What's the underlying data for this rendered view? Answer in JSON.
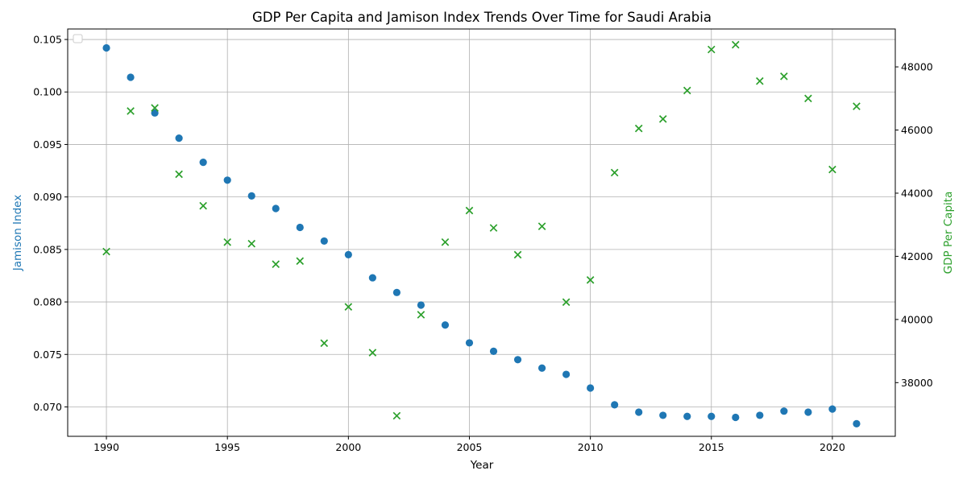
{
  "chart_data": {
    "type": "scatter",
    "title": "GDP Per Capita and Jamison Index Trends Over Time for Saudi Arabia",
    "xlabel": "Year",
    "ylabel_left": "Jamison Index",
    "ylabel_right": "GDP Per Capita",
    "xlim": [
      1988.4,
      2022.6
    ],
    "ylim_left": [
      0.0672,
      0.106
    ],
    "ylim_right": [
      36300,
      49200
    ],
    "x_ticks": [
      1990,
      1995,
      2000,
      2005,
      2010,
      2015,
      2020
    ],
    "y_left_ticks": [
      0.07,
      0.075,
      0.08,
      0.085,
      0.09,
      0.095,
      0.1,
      0.105
    ],
    "y_right_ticks": [
      38000,
      40000,
      42000,
      44000,
      46000,
      48000
    ],
    "grid": true,
    "legend": "upper-left (empty)",
    "colors": {
      "left": "#1f77b4",
      "right": "#2ca02c"
    },
    "series": [
      {
        "axis": "left",
        "marker": "circle",
        "x": [
          1990,
          1991,
          1992,
          1993,
          1994,
          1995,
          1996,
          1997,
          1998,
          1999,
          2000,
          2001,
          2002,
          2003,
          2004,
          2005,
          2006,
          2007,
          2008,
          2009,
          2010,
          2011,
          2012,
          2013,
          2014,
          2015,
          2016,
          2017,
          2018,
          2019,
          2020,
          2021
        ],
        "values": [
          0.1042,
          0.1014,
          0.098,
          0.0956,
          0.0933,
          0.0916,
          0.0901,
          0.0889,
          0.0871,
          0.0858,
          0.0845,
          0.0823,
          0.0809,
          0.0797,
          0.0778,
          0.0761,
          0.0753,
          0.0745,
          0.0737,
          0.0731,
          0.0718,
          0.0702,
          0.0695,
          0.0692,
          0.0691,
          0.0691,
          0.069,
          0.0692,
          0.0696,
          0.0695,
          0.0698,
          0.0684
        ]
      },
      {
        "axis": "right",
        "marker": "x",
        "x": [
          1990,
          1991,
          1992,
          1993,
          1994,
          1995,
          1996,
          1997,
          1998,
          1999,
          2000,
          2001,
          2002,
          2003,
          2004,
          2005,
          2006,
          2007,
          2008,
          2009,
          2010,
          2011,
          2012,
          2013,
          2014,
          2015,
          2016,
          2017,
          2018,
          2019,
          2020,
          2021
        ],
        "values": [
          42150,
          46600,
          46700,
          44600,
          43600,
          42450,
          42400,
          41750,
          41850,
          39250,
          40400,
          38950,
          36950,
          40150,
          42450,
          43450,
          42900,
          42050,
          42950,
          40550,
          41250,
          44650,
          46050,
          46350,
          47250,
          48550,
          48700,
          47550,
          47700,
          47000,
          44750,
          46750
        ]
      }
    ]
  }
}
